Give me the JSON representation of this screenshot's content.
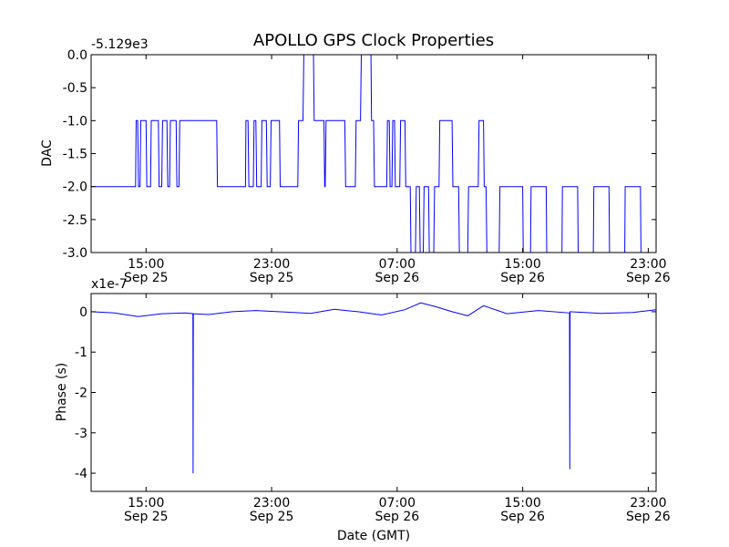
{
  "title": "APOLLO GPS Clock Properties",
  "colors": {
    "series": "#0000ff",
    "axis": "#000000",
    "background": "#ffffff"
  },
  "chart_data": [
    {
      "type": "line",
      "ylabel": "DAC",
      "xlabel": "",
      "offset_label": "-5.129e3",
      "ylim": [
        -3.0,
        0.0
      ],
      "yticks": [
        "0.0",
        "-0.5",
        "-1.0",
        "-1.5",
        "-2.0",
        "-2.5",
        "-3.0"
      ],
      "xlim": [
        "Sep 25 11:30",
        "Sep 26 23:30"
      ],
      "xticks": [
        {
          "time": "15:00",
          "date": "Sep 25"
        },
        {
          "time": "23:00",
          "date": "Sep 25"
        },
        {
          "time": "07:00",
          "date": "Sep 26"
        },
        {
          "time": "15:00",
          "date": "Sep 26"
        },
        {
          "time": "23:00",
          "date": "Sep 26"
        }
      ],
      "grid": false,
      "series": [
        {
          "x": [
            "Sep 25 11:30",
            "Sep 25 14:20",
            "Sep 25 14:22",
            "Sep 25 14:28",
            "Sep 25 14:31",
            "Sep 25 14:37",
            "Sep 25 14:40",
            "Sep 25 15:00",
            "Sep 25 15:03",
            "Sep 25 15:17",
            "Sep 25 15:20",
            "Sep 25 15:47",
            "Sep 25 15:50",
            "Sep 25 16:00",
            "Sep 25 16:03",
            "Sep 25 16:20",
            "Sep 25 16:23",
            "Sep 25 16:30",
            "Sep 25 16:33",
            "Sep 25 16:55",
            "Sep 25 16:58",
            "Sep 25 17:06",
            "Sep 25 17:09",
            "Sep 25 19:30",
            "Sep 25 19:33",
            "Sep 25 21:20",
            "Sep 25 21:22",
            "Sep 25 21:30",
            "Sep 25 21:33",
            "Sep 25 21:50",
            "Sep 25 21:53",
            "Sep 25 22:00",
            "Sep 25 22:03",
            "Sep 25 22:20",
            "Sep 25 22:23",
            "Sep 25 22:40",
            "Sep 25 22:43",
            "Sep 25 22:55",
            "Sep 25 22:58",
            "Sep 25 23:30",
            "Sep 25 23:33",
            "Sep 26 00:40",
            "Sep 26 00:43",
            "Sep 26 01:00",
            "Sep 26 01:03",
            "Sep 26 01:40",
            "Sep 26 01:43",
            "Sep 26 02:20",
            "Sep 26 02:23",
            "Sep 26 02:25",
            "Sep 26 02:28",
            "Sep 26 03:40",
            "Sep 26 03:43",
            "Sep 26 04:20",
            "Sep 26 04:23",
            "Sep 26 04:40",
            "Sep 26 04:43",
            "Sep 26 05:20",
            "Sep 26 05:22",
            "Sep 26 05:30",
            "Sep 26 05:33",
            "Sep 26 06:20",
            "Sep 26 06:23",
            "Sep 26 06:30",
            "Sep 26 06:33",
            "Sep 26 06:40",
            "Sep 26 06:43",
            "Sep 26 06:50",
            "Sep 26 06:53",
            "Sep 26 07:10",
            "Sep 26 07:13",
            "Sep 26 07:30",
            "Sep 26 07:33",
            "Sep 26 07:50",
            "Sep 26 07:53",
            "Sep 26 08:10",
            "Sep 26 08:13",
            "Sep 26 08:25",
            "Sep 26 08:28",
            "Sep 26 08:40",
            "Sep 26 08:43",
            "Sep 26 09:00",
            "Sep 26 09:03",
            "Sep 26 09:20",
            "Sep 26 09:23",
            "Sep 26 09:40",
            "Sep 26 09:43",
            "Sep 26 10:30",
            "Sep 26 10:33",
            "Sep 26 10:55",
            "Sep 26 10:58",
            "Sep 26 11:30",
            "Sep 26 11:33",
            "Sep 26 12:10",
            "Sep 26 12:13",
            "Sep 26 12:30",
            "Sep 26 12:33",
            "Sep 26 12:40",
            "Sep 26 12:43",
            "Sep 26 13:30",
            "Sep 26 13:33",
            "Sep 26 15:00",
            "Sep 26 15:02",
            "Sep 26 15:30",
            "Sep 26 15:32",
            "Sep 26 16:30",
            "Sep 26 16:32",
            "Sep 26 17:30",
            "Sep 26 17:32",
            "Sep 26 18:30",
            "Sep 26 18:32",
            "Sep 26 19:30",
            "Sep 26 19:32",
            "Sep 26 20:30",
            "Sep 26 20:32",
            "Sep 26 21:30",
            "Sep 26 21:32",
            "Sep 26 22:30",
            "Sep 26 22:32",
            "Sep 26 23:30"
          ],
          "values": [
            -2.0,
            -2.0,
            -1.0,
            -1.0,
            -2.0,
            -2.0,
            -1.0,
            -1.0,
            -2.0,
            -2.0,
            -1.0,
            -1.0,
            -2.0,
            -2.0,
            -1.0,
            -1.0,
            -2.0,
            -2.0,
            -1.0,
            -1.0,
            -2.0,
            -2.0,
            -1.0,
            -1.0,
            -2.0,
            -2.0,
            -1.0,
            -1.0,
            -2.0,
            -2.0,
            -1.0,
            -1.0,
            -2.0,
            -2.0,
            -1.0,
            -1.0,
            -2.0,
            -2.0,
            -1.0,
            -1.0,
            -2.0,
            -2.0,
            -1.0,
            -1.0,
            -0.0,
            -0.0,
            -1.0,
            -1.0,
            -2.0,
            -2.0,
            -1.0,
            -1.0,
            -2.0,
            -2.0,
            -1.0,
            -1.0,
            -0.0,
            -0.0,
            -1.0,
            -1.0,
            -2.0,
            -2.0,
            -1.0,
            -1.0,
            -2.0,
            -2.0,
            -1.0,
            -1.0,
            -2.0,
            -2.0,
            -1.0,
            -1.0,
            -2.0,
            -2.0,
            -3.0,
            -3.0,
            -2.0,
            -2.0,
            -3.0,
            -3.0,
            -2.0,
            -2.0,
            -3.0,
            -3.0,
            -2.0,
            -2.0,
            -1.0,
            -1.0,
            -2.0,
            -2.0,
            -3.0,
            -3.0,
            -2.0,
            -2.0,
            -1.0,
            -1.0,
            -2.0,
            -2.0,
            -3.0,
            -3.0,
            -2.0,
            -2.0,
            -3.0,
            -3.0,
            -2.0,
            -2.0,
            -3.0,
            -3.0,
            -2.0,
            -2.0,
            -3.0,
            -3.0,
            -2.0,
            -2.0,
            -3.0,
            -3.0,
            -2.0,
            -2.0,
            -3.0,
            -3.0
          ]
        }
      ]
    },
    {
      "type": "line",
      "ylabel": "Phase (s)",
      "xlabel": "Date (GMT)",
      "offset_label": "x1e-7",
      "ylim": [
        -4.45,
        0.45
      ],
      "yticks": [
        "0",
        "-1",
        "-2",
        "-3",
        "-4"
      ],
      "xlim": [
        "Sep 25 11:30",
        "Sep 26 23:30"
      ],
      "xticks": [
        {
          "time": "15:00",
          "date": "Sep 25"
        },
        {
          "time": "23:00",
          "date": "Sep 25"
        },
        {
          "time": "07:00",
          "date": "Sep 26"
        },
        {
          "time": "15:00",
          "date": "Sep 26"
        },
        {
          "time": "23:00",
          "date": "Sep 26"
        }
      ],
      "grid": false,
      "series": [
        {
          "x": [
            "Sep 25 11:30",
            "Sep 25 13:00",
            "Sep 25 14:30",
            "Sep 25 16:00",
            "Sep 25 17:30",
            "Sep 25 17:59",
            "Sep 25 18:00",
            "Sep 25 18:01",
            "Sep 25 19:00",
            "Sep 25 20:30",
            "Sep 25 22:00",
            "Sep 26 00:00",
            "Sep 26 01:30",
            "Sep 26 03:00",
            "Sep 26 04:30",
            "Sep 26 06:00",
            "Sep 26 07:30",
            "Sep 26 08:30",
            "Sep 26 09:30",
            "Sep 26 10:30",
            "Sep 26 11:30",
            "Sep 26 12:30",
            "Sep 26 14:00",
            "Sep 26 16:00",
            "Sep 26 17:59",
            "Sep 26 18:00",
            "Sep 26 18:01",
            "Sep 26 20:00",
            "Sep 26 22:00",
            "Sep 26 23:30"
          ],
          "values": [
            0.0,
            -0.03,
            -0.12,
            -0.05,
            -0.03,
            -0.05,
            -4.0,
            -0.05,
            -0.07,
            0.0,
            0.03,
            -0.01,
            -0.04,
            0.06,
            0.0,
            -0.08,
            0.05,
            0.22,
            0.12,
            0.0,
            -0.1,
            0.15,
            -0.05,
            0.03,
            -0.03,
            -3.9,
            0.0,
            -0.04,
            -0.02,
            0.05
          ]
        }
      ]
    }
  ]
}
